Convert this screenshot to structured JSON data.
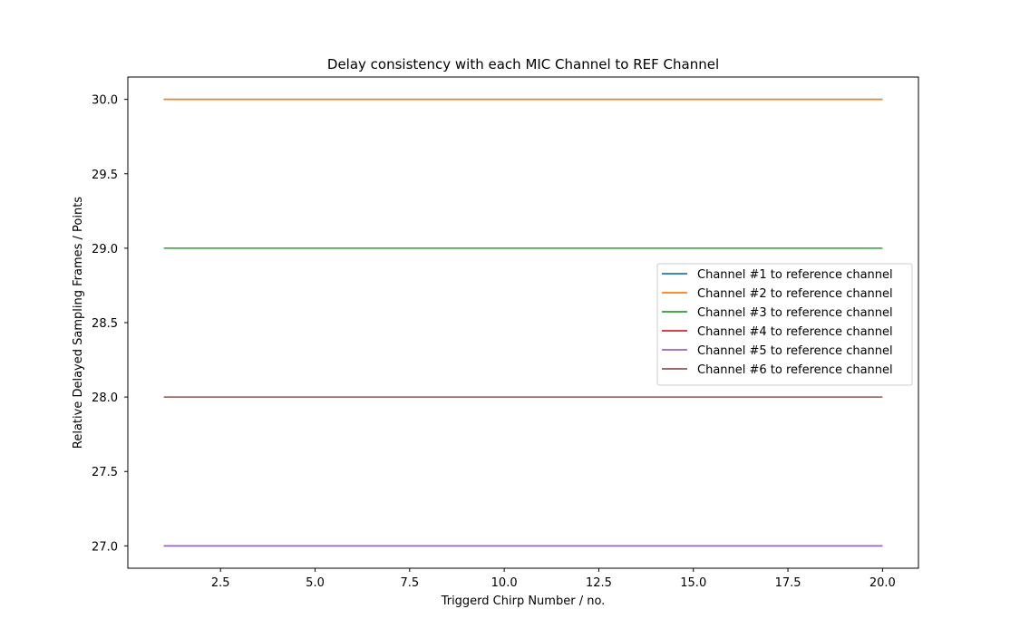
{
  "chart_data": {
    "type": "line",
    "title": "Delay consistency with each MIC Channel to REF Channel",
    "xlabel": "Triggerd Chirp Number / no.",
    "ylabel": "Relative Delayed Sampling Frames / Points",
    "xlim": [
      0.05,
      20.95
    ],
    "ylim": [
      26.85,
      30.15
    ],
    "xticks": [
      2.5,
      5.0,
      7.5,
      10.0,
      12.5,
      15.0,
      17.5,
      20.0
    ],
    "xtick_labels": [
      "2.5",
      "5.0",
      "7.5",
      "10.0",
      "12.5",
      "15.0",
      "17.5",
      "20.0"
    ],
    "yticks": [
      27.0,
      27.5,
      28.0,
      28.5,
      29.0,
      29.5,
      30.0
    ],
    "ytick_labels": [
      "27.0",
      "27.5",
      "28.0",
      "28.5",
      "29.0",
      "29.5",
      "30.0"
    ],
    "grid": false,
    "legend_position": "center-right",
    "x": [
      1,
      2,
      3,
      4,
      5,
      6,
      7,
      8,
      9,
      10,
      11,
      12,
      13,
      14,
      15,
      16,
      17,
      18,
      19,
      20
    ],
    "series": [
      {
        "name": "Channel #1 to reference channel",
        "color": "#1f77b4",
        "values": [
          30,
          30,
          30,
          30,
          30,
          30,
          30,
          30,
          30,
          30,
          30,
          30,
          30,
          30,
          30,
          30,
          30,
          30,
          30,
          30
        ]
      },
      {
        "name": "Channel #2 to reference channel",
        "color": "#ff7f0e",
        "values": [
          30,
          30,
          30,
          30,
          30,
          30,
          30,
          30,
          30,
          30,
          30,
          30,
          30,
          30,
          30,
          30,
          30,
          30,
          30,
          30
        ]
      },
      {
        "name": "Channel #3 to reference channel",
        "color": "#2ca02c",
        "values": [
          29,
          29,
          29,
          29,
          29,
          29,
          29,
          29,
          29,
          29,
          29,
          29,
          29,
          29,
          29,
          29,
          29,
          29,
          29,
          29
        ]
      },
      {
        "name": "Channel #4 to reference channel",
        "color": "#d62728",
        "values": [
          27,
          27,
          27,
          27,
          27,
          27,
          27,
          27,
          27,
          27,
          27,
          27,
          27,
          27,
          27,
          27,
          27,
          27,
          27,
          27
        ]
      },
      {
        "name": "Channel #5 to reference channel",
        "color": "#9467bd",
        "values": [
          27,
          27,
          27,
          27,
          27,
          27,
          27,
          27,
          27,
          27,
          27,
          27,
          27,
          27,
          27,
          27,
          27,
          27,
          27,
          27
        ]
      },
      {
        "name": "Channel #6 to reference channel",
        "color": "#8c564b",
        "values": [
          28,
          28,
          28,
          28,
          28,
          28,
          28,
          28,
          28,
          28,
          28,
          28,
          28,
          28,
          28,
          28,
          28,
          28,
          28,
          28
        ]
      }
    ]
  }
}
